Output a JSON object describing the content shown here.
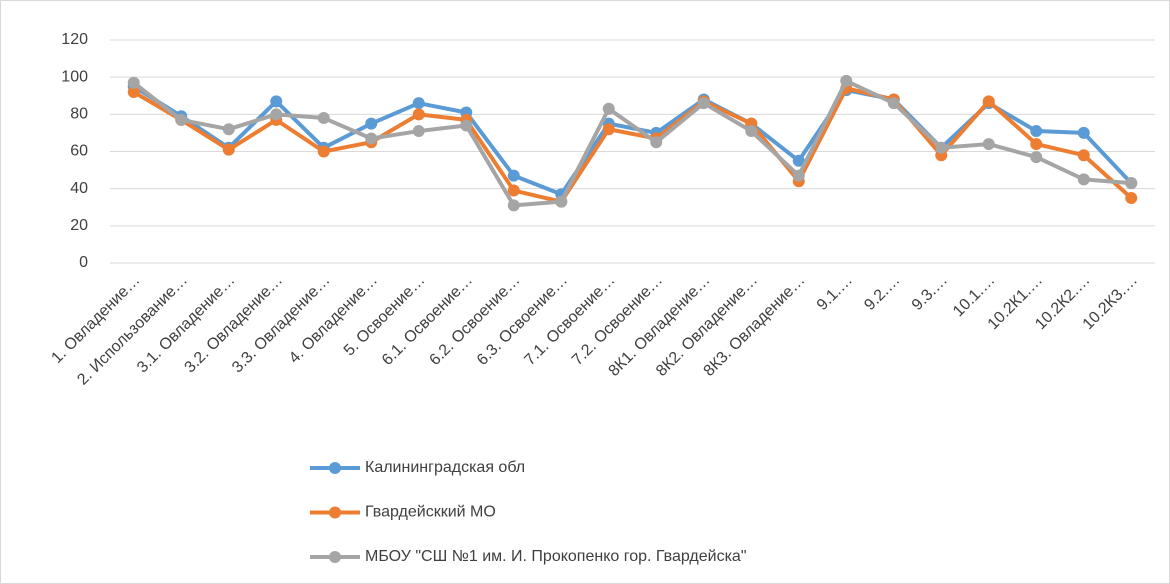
{
  "chart_data": {
    "type": "line",
    "categories": [
      "1. Овладение…",
      "2. Использование…",
      "3.1. Овладение…",
      "3.2. Овладение…",
      "3.3. Овладение…",
      "4. Овладение…",
      "5. Освоение…",
      "6.1. Освоение…",
      "6.2. Освоение…",
      "6.3. Освоение…",
      "7.1. Освоение…",
      "7.2. Освоение…",
      "8К1. Овладение…",
      "8К2. Овладение…",
      "8К3. Овладение…",
      "9.1.…",
      "9.2.…",
      "9.3.…",
      "10.1.…",
      "10.2К1.…",
      "10.2К2.…",
      "10.2К3.…"
    ],
    "series": [
      {
        "name": "Калининградская обл",
        "color": "#5b9bd5",
        "values": [
          95,
          79,
          62,
          87,
          62,
          75,
          86,
          81,
          47,
          37,
          75,
          70,
          88,
          75,
          55,
          93,
          88,
          62,
          86,
          71,
          70,
          43
        ]
      },
      {
        "name": "Гвардейсккий МО",
        "color": "#ed7d31",
        "values": [
          92,
          77,
          61,
          77,
          60,
          65,
          80,
          77,
          39,
          33,
          72,
          67,
          87,
          75,
          44,
          94,
          88,
          58,
          87,
          64,
          58,
          35
        ]
      },
      {
        "name": "МБОУ \"СШ №1 им. И. Прокопенко гор. Гвардейска\"",
        "color": "#a5a5a5",
        "values": [
          97,
          77,
          72,
          80,
          78,
          67,
          71,
          74,
          31,
          33,
          83,
          65,
          86,
          71,
          47,
          98,
          86,
          62,
          64,
          57,
          45,
          43
        ]
      }
    ],
    "ylim": [
      0,
      120
    ],
    "yticks": [
      0,
      20,
      40,
      60,
      80,
      100,
      120
    ],
    "grid": true,
    "legend": "bottom"
  }
}
